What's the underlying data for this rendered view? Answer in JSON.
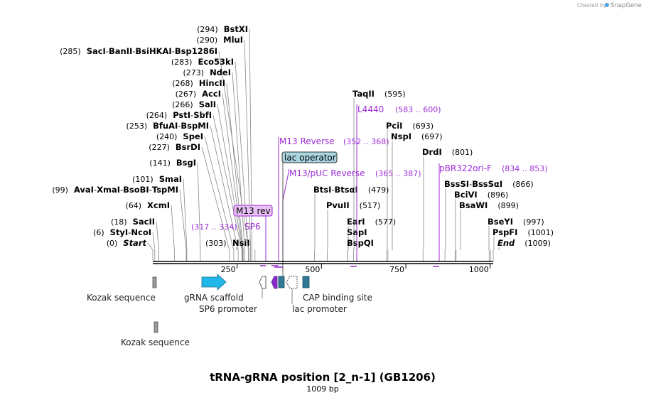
{
  "title": "tRNA-gRNA position [2_n-1] (GB1206)",
  "length_label": "1009 bp",
  "credit": {
    "prefix": "Created by",
    "brand": "SnapGene"
  },
  "ruler": {
    "start": 0,
    "end": 1009,
    "ticks": [
      "250",
      "500",
      "750",
      "1000"
    ]
  },
  "site_rows": [
    {
      "pos": "(294)",
      "names": [
        "BstXI"
      ],
      "line_bp": 294
    },
    {
      "pos": "(290)",
      "names": [
        "MluI"
      ],
      "line_bp": 290
    },
    {
      "pos": "(285)",
      "names": [
        "SacI",
        "BanII",
        "BsiHKAI",
        "Bsp1286I"
      ],
      "line_bp": 285
    },
    {
      "pos": "(283)",
      "names": [
        "Eco53kI"
      ],
      "line_bp": 283
    },
    {
      "pos": "(273)",
      "names": [
        "NdeI"
      ],
      "line_bp": 273
    },
    {
      "pos": "(268)",
      "names": [
        "HincII"
      ],
      "line_bp": 268
    },
    {
      "pos": "(267)",
      "names": [
        "AccI"
      ],
      "line_bp": 267
    },
    {
      "pos": "(266)",
      "names": [
        "SalI"
      ],
      "line_bp": 266
    },
    {
      "pos": "(264)",
      "names": [
        "PstI",
        "SbfI"
      ],
      "line_bp": 264
    },
    {
      "pos": "(253)",
      "names": [
        "BfuAI",
        "BspMI"
      ],
      "line_bp": 253
    },
    {
      "pos": "(240)",
      "names": [
        "SpeI"
      ],
      "line_bp": 240
    },
    {
      "pos": "(227)",
      "names": [
        "BsrDI"
      ],
      "line_bp": 227
    },
    {
      "pos": "(141)",
      "names": [
        "BsgI"
      ],
      "line_bp": 141
    },
    {
      "pos": "(101)",
      "names": [
        "SmaI"
      ],
      "line_bp": 101
    },
    {
      "pos": "(99)",
      "names": [
        "AvaI",
        "XmaI",
        "BsoBI",
        "TspMI"
      ],
      "line_bp": 99
    },
    {
      "pos": "(64)",
      "names": [
        "XcmI"
      ],
      "line_bp": 64
    },
    {
      "pos": "(18)",
      "names": [
        "SacII"
      ],
      "line_bp": 18
    },
    {
      "pos": "(6)",
      "names": [
        "StyI",
        "NcoI"
      ],
      "line_bp": 6
    },
    {
      "pos": "(0)",
      "names": [
        "Start"
      ],
      "line_bp": 0,
      "italic": true
    },
    {
      "pos": "(303)",
      "names": [
        "NsiI"
      ],
      "line_bp": 303,
      "pos_first": true
    },
    {
      "pos": "(595)",
      "names": [
        "TaqII"
      ],
      "line_bp": 595,
      "pos_after": true
    },
    {
      "pos": "(693)",
      "names": [
        "PciI"
      ],
      "line_bp": 693,
      "pos_after": true
    },
    {
      "pos": "(697)",
      "names": [
        "NspI"
      ],
      "line_bp": 697,
      "pos_after": true
    },
    {
      "pos": "(801)",
      "names": [
        "DrdI"
      ],
      "line_bp": 801,
      "pos_after": true
    },
    {
      "pos": "(479)",
      "names": [
        "BtsI",
        "BtsαI"
      ],
      "line_bp": 479,
      "pos_after": true
    },
    {
      "pos": "(517)",
      "names": [
        "PvuII"
      ],
      "line_bp": 517,
      "pos_after": true
    },
    {
      "pos": "(577)",
      "names": [
        "EarI"
      ],
      "line_bp": 577,
      "pos_after": true
    },
    {
      "pos": "",
      "names": [
        "SapI"
      ],
      "line_bp": 577,
      "pos_after": true
    },
    {
      "pos": "",
      "names": [
        "BspQI"
      ],
      "line_bp": 577,
      "pos_after": true
    },
    {
      "pos": "(866)",
      "names": [
        "BssSI",
        "BssSαI"
      ],
      "line_bp": 866,
      "pos_after": true
    },
    {
      "pos": "(896)",
      "names": [
        "BciVI"
      ],
      "line_bp": 896,
      "pos_after": true
    },
    {
      "pos": "(899)",
      "names": [
        "BsaWI"
      ],
      "line_bp": 899,
      "pos_after": true
    },
    {
      "pos": "(997)",
      "names": [
        "BseYI"
      ],
      "line_bp": 997,
      "pos_after": true
    },
    {
      "pos": "(1001)",
      "names": [
        "PspFI"
      ],
      "line_bp": 1001,
      "pos_after": true
    },
    {
      "pos": "(1009)",
      "names": [
        "End"
      ],
      "line_bp": 1009,
      "pos_after": true,
      "italic": true
    }
  ],
  "primers": [
    {
      "name": "M13 rev",
      "range": "(317 .. 334)",
      "boxed": true
    },
    {
      "name": "SP6",
      "range": "(317 .. 334)"
    },
    {
      "name": "M13 Reverse",
      "range": "(352 .. 368)"
    },
    {
      "name": "M13/pUC Reverse",
      "range": "(365 .. 387)"
    },
    {
      "name": "L4440",
      "range": "(583 .. 600)"
    },
    {
      "name": "pBR322ori-F",
      "range": "(834 .. 853)"
    }
  ],
  "features": [
    {
      "name": "lac operator",
      "boxed": true,
      "color": "#a9d6e0"
    },
    {
      "name": "Kozak sequence",
      "color": "#9a9a9a"
    },
    {
      "name": "gRNA scaffold",
      "color": "#1fb8e8"
    },
    {
      "name": "SP6 promoter",
      "color": "#ffffff"
    },
    {
      "name": "lac promoter",
      "color": "#ffffff"
    },
    {
      "name": "CAP binding site",
      "color": "#2f7a96"
    },
    {
      "name": "Kozak sequence",
      "color": "#9a9a9a"
    }
  ],
  "colors": {
    "primer": "#9d2bd6",
    "primer_box": "#e9c2f5",
    "backbone": "#000000"
  }
}
